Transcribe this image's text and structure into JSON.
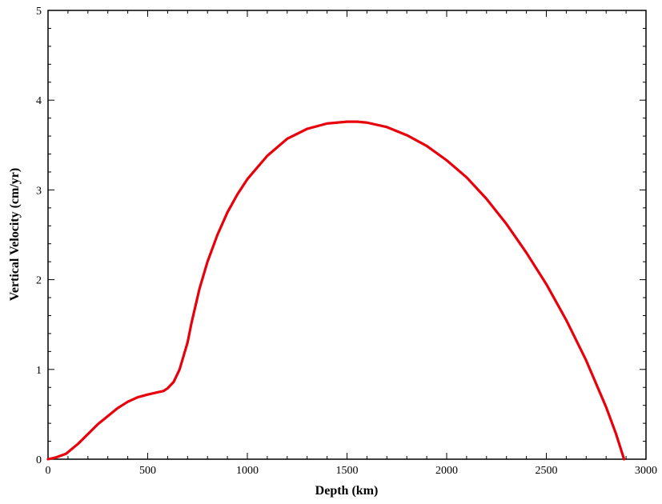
{
  "chart_data": {
    "type": "line",
    "title": "",
    "xlabel": "Depth (km)",
    "ylabel": "Vertical Velocity (cm/yr)",
    "xlim": [
      0,
      3000
    ],
    "ylim": [
      0,
      5
    ],
    "x_ticks": [
      0,
      500,
      1000,
      1500,
      2000,
      2500,
      3000
    ],
    "y_ticks": [
      0,
      1,
      2,
      3,
      4,
      5
    ],
    "grid": false,
    "legend": "none",
    "series": [
      {
        "color": "#e8000b",
        "x": [
          0,
          40,
          90,
          150,
          200,
          250,
          300,
          350,
          400,
          450,
          500,
          540,
          580,
          600,
          630,
          660,
          680,
          700,
          720,
          760,
          800,
          850,
          900,
          950,
          1000,
          1100,
          1200,
          1300,
          1400,
          1500,
          1550,
          1600,
          1700,
          1800,
          1900,
          2000,
          2100,
          2200,
          2300,
          2400,
          2500,
          2600,
          2700,
          2800,
          2850,
          2890
        ],
        "y": [
          0,
          0.02,
          0.06,
          0.17,
          0.28,
          0.39,
          0.48,
          0.57,
          0.64,
          0.69,
          0.72,
          0.74,
          0.76,
          0.79,
          0.86,
          1.0,
          1.15,
          1.3,
          1.52,
          1.9,
          2.2,
          2.5,
          2.75,
          2.95,
          3.12,
          3.38,
          3.57,
          3.68,
          3.74,
          3.76,
          3.76,
          3.75,
          3.7,
          3.61,
          3.49,
          3.33,
          3.14,
          2.9,
          2.62,
          2.3,
          1.95,
          1.55,
          1.1,
          0.58,
          0.28,
          0
        ]
      }
    ]
  }
}
